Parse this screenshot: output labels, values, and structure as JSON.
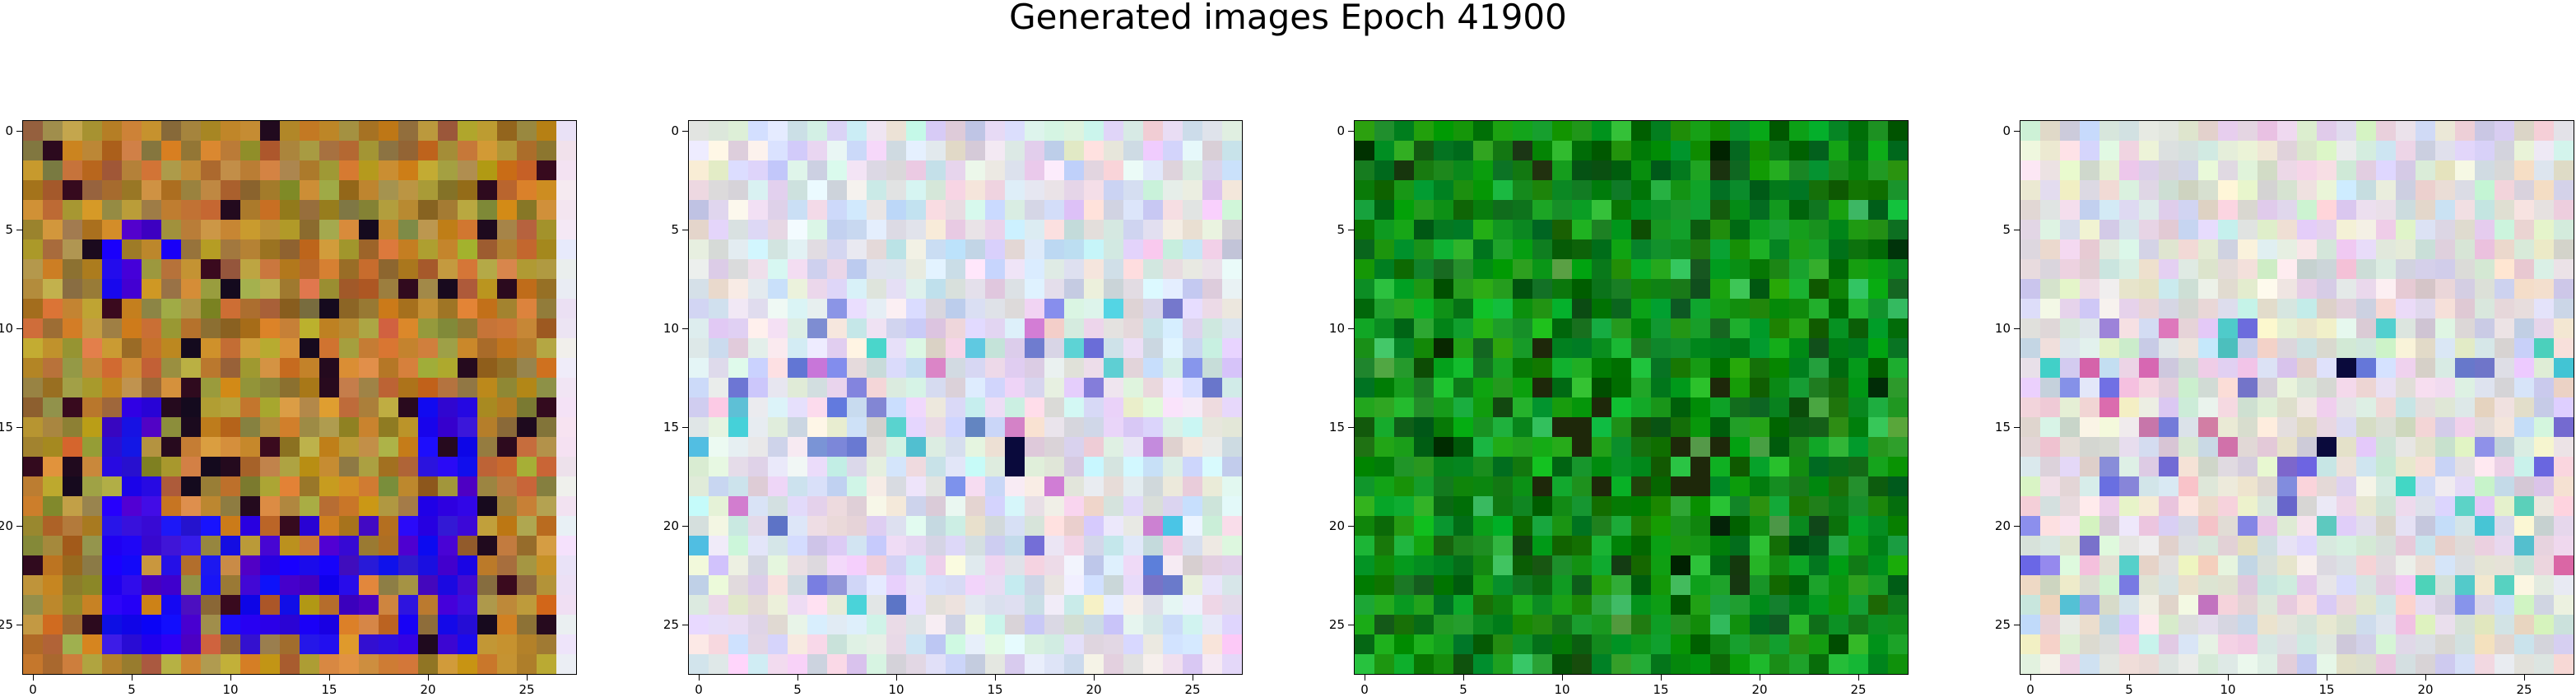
{
  "title": "Generated images Epoch 41900",
  "chart_data": {
    "type": "heatmap",
    "title": "Generated images Epoch 41900",
    "grid_size": 28,
    "xlim": [
      -0.5,
      27.5
    ],
    "ylim": [
      27.5,
      -0.5
    ],
    "x_ticks": [
      "0",
      "5",
      "10",
      "15",
      "20",
      "25"
    ],
    "y_ticks": [
      "0",
      "5",
      "10",
      "15",
      "20",
      "25"
    ],
    "grid": false,
    "images": [
      {
        "name": "image-1",
        "description": "orange/olive/brown noise with a blue-violet U shape and a pale right column",
        "palette": [
          "#b5762a",
          "#c48a26",
          "#9a6a2c",
          "#8c7a34",
          "#a08c3c",
          "#c8742c",
          "#d08a3a",
          "#b0a040"
        ],
        "accent_palette": [
          "#2200ee",
          "#3311dd",
          "#4400cc",
          "#1a0af0"
        ],
        "edge_color": "#f0e8f4"
      },
      {
        "name": "image-2",
        "description": "pastel noise: pale blue, lavender and pink with scattered dark blue and cyan pixels",
        "palette": [
          "#e4e6f0",
          "#d6dcec",
          "#e8dcea",
          "#dce6f2",
          "#eee8ec",
          "#cfd4ea",
          "#e6e0d8",
          "#d8e8ec"
        ],
        "accent_palette": [
          "#6a78d0",
          "#50c8d8",
          "#8888e0",
          "#d080d0"
        ]
      },
      {
        "name": "image-3",
        "description": "green noise of light and dark greens with a few black pixels",
        "palette": [
          "#0a8a14",
          "#12a020",
          "#066a10",
          "#1a9a1a",
          "#0c7a12",
          "#22b030",
          "#045a0a",
          "#10901c"
        ],
        "accent_palette": [
          "#002a04",
          "#3ac060",
          "#1a3a10",
          "#50a040"
        ]
      },
      {
        "name": "image-4",
        "description": "pastel noise: beige, pink and lavender with scattered dark pixels",
        "palette": [
          "#e8e4d8",
          "#e2d8e4",
          "#dcdcec",
          "#ece6e0",
          "#d8e2dc",
          "#e6d4dc",
          "#e0e2d0",
          "#d4d8e8"
        ],
        "accent_palette": [
          "#7070d8",
          "#50c8c8",
          "#d070b0",
          "#9090e0"
        ]
      }
    ]
  }
}
